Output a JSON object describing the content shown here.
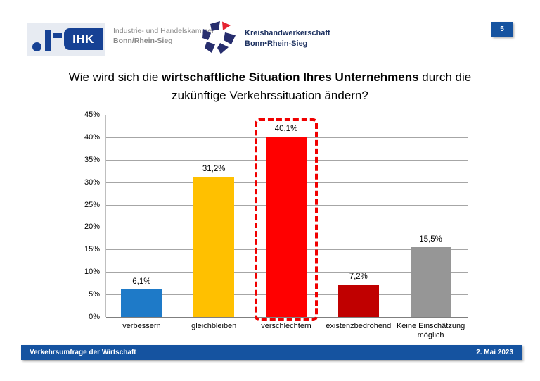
{
  "header": {
    "ihk_logo_text": "IHK",
    "ihk_org_line1": "Industrie- und Handelskammer",
    "ihk_org_line2": "Bonn/Rhein-Sieg",
    "khs_org_line1": "Kreishandwerkerschaft",
    "khs_org_line2": "Bonn•Rhein-Sieg",
    "page_number": "5"
  },
  "title": {
    "line1_prefix": "Wie wird sich die ",
    "line1_bold": "wirtschaftliche Situation Ihres Unternehmens",
    "line1_suffix": " durch die",
    "line2": "zukünftige Verkehrssituation ändern?"
  },
  "chart_data": {
    "type": "bar",
    "categories": [
      "verbessern",
      "gleichbleiben",
      "verschlechtern",
      "existenzbedrohend",
      "Keine Einschätzung möglich"
    ],
    "values": [
      6.1,
      31.2,
      40.1,
      7.2,
      15.5
    ],
    "value_labels": [
      "6,1%",
      "31,2%",
      "40,1%",
      "7,2%",
      "15,5%"
    ],
    "bar_colors": [
      "#1e7ac8",
      "#ffc000",
      "#ff0000",
      "#c00000",
      "#969696"
    ],
    "highlight_index": 2,
    "highlight_style": "red-dashed-box",
    "title": "",
    "xlabel": "",
    "ylabel": "",
    "ylim": [
      0,
      45
    ],
    "y_tick_step": 5,
    "y_tick_suffix": "%",
    "grid": true,
    "legend": "none"
  },
  "footer": {
    "left": "Verkehrsumfrage der Wirtschaft",
    "right": "2. Mai 2023",
    "bar_color": "#1553a0"
  },
  "colors": {
    "brand_blue": "#164194",
    "khs_blue": "#272e6e",
    "khs_red": "#e52330",
    "footer_blue": "#1553a0",
    "gridline": "#a6a6a6"
  }
}
